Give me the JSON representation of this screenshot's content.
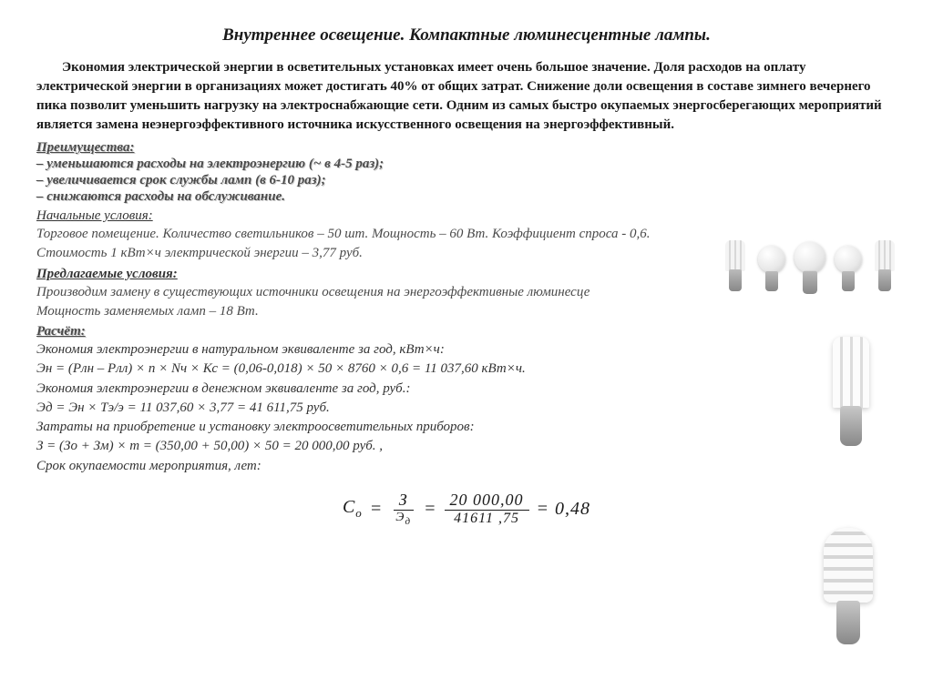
{
  "title": "Внутреннее освещение. Компактные люминесцентные лампы.",
  "intro": "Экономия электрической энергии в осветительных установках имеет очень большое значение. Доля расходов на оплату электрической энергии в организациях может достигать 40% от общих  затрат.  Снижение доли освещения в составе зимнего вечернего пика позволит уменьшить нагрузку на электроснабжающие сети. Одним из самых быстро окупаемых энергосберегающих мероприятий является замена неэнергоэффективного источника искусственного освещения на энергоэффективный.",
  "advantages_head": "Преимущества:",
  "advantages": [
    "– уменьшаются расходы на электроэнергию (~ в 4-5 раз);",
    "– увеличивается срок службы ламп (в 6-10 раз);",
    "– снижаются расходы на обслуживание."
  ],
  "initial_head": "Начальные условия:",
  "initial": [
    "Торговое помещение. Количество светильников – 50 шт. Мощность – 60 Вт. Коэффициент спроса - 0,6.",
    "Стоимость 1 кВт×ч электрической энергии – 3,77 руб."
  ],
  "proposed_head": "Предлагаемые условия:",
  "proposed": [
    "Производим замену в существующих источники освещения на энергоэффективные люминесце",
    "Мощность заменяемых ламп – 18 Вт."
  ],
  "calc_head": "Расчёт:",
  "calc": [
    "Экономия электроэнергии в натуральном эквиваленте за год,  кВт×ч:",
    "Эн = (Рлн – Рлл) × n × Nч × Кс  =  (0,06-0,018) × 50 × 8760 × 0,6 = 11 037,60 кВт×ч.",
    "Экономия электроэнергии в денежном эквиваленте за год, руб.:",
    "Эд  = Эн  × Тэ/э = 11 037,60 × 3,77 = 41 611,75 руб.",
    "Затраты на приобретение и установку электроосветительных приборов:",
    "З = (Зо + Зм) × m = (350,00 + 50,00) × 50 = 20 000,00 руб. ,",
    "Срок окупаемости мероприятия, лет:"
  ],
  "formula": {
    "lhs": "С",
    "lhs_sub": "о",
    "eq": "=",
    "f1_num": "З",
    "f1_den": "Э",
    "f1_den_sub": "д",
    "f2_num": "20 000,00",
    "f2_den": "41611 ,75",
    "result": "= 0,48"
  }
}
